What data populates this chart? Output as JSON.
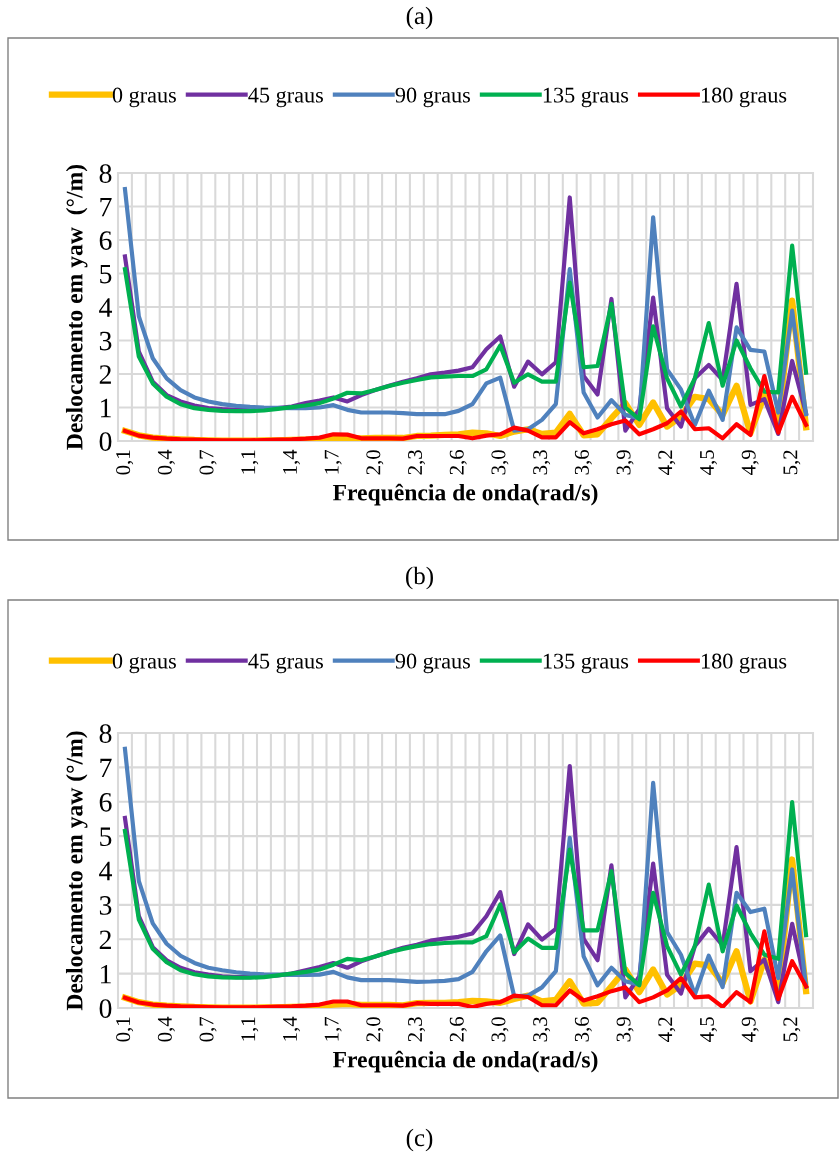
{
  "chart_data": [
    {
      "type": "line",
      "title": "(a)",
      "annotations": [
        "(b)"
      ],
      "xlabel": "Frequência de onda(rad/s)",
      "ylabel": "Deslocamento em yaw  (°/m)",
      "categories": [
        "0,1",
        null,
        null,
        "0,4",
        null,
        null,
        "0,7",
        null,
        null,
        "1,1",
        null,
        null,
        "1,4",
        null,
        null,
        "1,7",
        null,
        null,
        "2,0",
        null,
        null,
        "2,3",
        null,
        null,
        "2,6",
        null,
        null,
        "3,0",
        null,
        null,
        "3,3",
        null,
        null,
        "3,6",
        null,
        null,
        "3,9",
        null,
        null,
        "4,2",
        null,
        null,
        "4,5",
        null,
        null,
        "4,9",
        null,
        null,
        "5,2",
        null
      ],
      "ylim": [
        0,
        8
      ],
      "yticks": [
        0,
        1,
        2,
        3,
        4,
        5,
        6,
        7,
        8
      ],
      "grid": true,
      "legend": "top",
      "marker": "none",
      "line_style": "solid",
      "series": [
        {
          "name": "0 graus",
          "color": "#ffc000",
          "values": [
            0.3,
            0.17,
            0.1,
            0.07,
            0.05,
            0.03,
            0.02,
            0.01,
            0.01,
            0.01,
            0.02,
            0.02,
            0.03,
            0.04,
            0.05,
            0.08,
            0.1,
            0.08,
            0.09,
            0.09,
            0.09,
            0.15,
            0.16,
            0.18,
            0.2,
            0.25,
            0.23,
            0.15,
            0.28,
            0.35,
            0.21,
            0.25,
            0.81,
            0.17,
            0.2,
            0.68,
            1.13,
            0.48,
            1.15,
            0.43,
            0.73,
            1.32,
            1.25,
            0.78,
            1.65,
            0.23,
            1.37,
            0.58,
            4.19,
            0.41
          ]
        },
        {
          "name": "45 graus",
          "color": "#7030a0",
          "values": [
            5.51,
            2.67,
            1.77,
            1.37,
            1.18,
            1.06,
            0.98,
            0.95,
            0.93,
            0.93,
            0.95,
            0.98,
            1.03,
            1.13,
            1.21,
            1.3,
            1.18,
            1.37,
            1.52,
            1.65,
            1.77,
            1.87,
            1.99,
            2.04,
            2.1,
            2.2,
            2.74,
            3.12,
            1.62,
            2.37,
            1.99,
            2.35,
            7.27,
            1.94,
            1.39,
            4.24,
            0.31,
            0.95,
            4.28,
            0.98,
            0.43,
            1.87,
            2.27,
            1.82,
            4.69,
            1.08,
            1.25,
            0.21,
            2.39,
            0.83
          ]
        },
        {
          "name": "90 graus",
          "color": "#4f81bd",
          "values": [
            7.52,
            3.72,
            2.47,
            1.87,
            1.52,
            1.3,
            1.18,
            1.1,
            1.05,
            1.02,
            1.0,
            0.99,
            0.98,
            0.98,
            1.0,
            1.07,
            0.93,
            0.85,
            0.85,
            0.85,
            0.83,
            0.8,
            0.8,
            0.8,
            0.9,
            1.1,
            1.72,
            1.89,
            0.31,
            0.35,
            0.63,
            1.1,
            5.13,
            1.45,
            0.7,
            1.22,
            0.78,
            0.68,
            6.68,
            2.14,
            1.54,
            0.48,
            1.5,
            0.63,
            3.39,
            2.72,
            2.67,
            0.85,
            3.89,
            0.8
          ]
        },
        {
          "name": "135 graus",
          "color": "#00b050",
          "values": [
            5.13,
            2.52,
            1.72,
            1.32,
            1.1,
            0.98,
            0.93,
            0.9,
            0.89,
            0.89,
            0.91,
            0.96,
            1.01,
            1.06,
            1.13,
            1.27,
            1.44,
            1.42,
            1.52,
            1.64,
            1.74,
            1.82,
            1.9,
            1.92,
            1.94,
            1.94,
            2.14,
            2.85,
            1.74,
            1.99,
            1.77,
            1.77,
            4.73,
            2.2,
            2.24,
            4.09,
            1.0,
            0.65,
            3.42,
            1.87,
            1.03,
            1.87,
            3.52,
            1.65,
            3.0,
            2.17,
            1.47,
            1.45,
            5.83,
            2.04
          ]
        },
        {
          "name": "180 graus",
          "color": "#ff0000",
          "values": [
            0.3,
            0.16,
            0.1,
            0.07,
            0.05,
            0.04,
            0.03,
            0.02,
            0.02,
            0.02,
            0.03,
            0.04,
            0.05,
            0.07,
            0.1,
            0.2,
            0.19,
            0.08,
            0.08,
            0.08,
            0.07,
            0.15,
            0.15,
            0.15,
            0.15,
            0.08,
            0.16,
            0.2,
            0.4,
            0.31,
            0.11,
            0.11,
            0.56,
            0.23,
            0.35,
            0.5,
            0.61,
            0.2,
            0.35,
            0.53,
            0.88,
            0.35,
            0.38,
            0.08,
            0.5,
            0.18,
            1.94,
            0.25,
            1.32,
            0.48
          ]
        }
      ]
    },
    {
      "type": "line",
      "annotations": [
        "(c)"
      ],
      "xlabel": "Frequência de onda(rad/s)",
      "ylabel": "Deslocamento em yaw (°/m)",
      "categories": [
        "0,1",
        null,
        null,
        "0,4",
        null,
        null,
        "0,7",
        null,
        null,
        "1,1",
        null,
        null,
        "1,4",
        null,
        null,
        "1,7",
        null,
        null,
        "2,0",
        null,
        null,
        "2,3",
        null,
        null,
        "2,6",
        null,
        null,
        "3,0",
        null,
        null,
        "3,3",
        null,
        null,
        "3,6",
        null,
        null,
        "3,9",
        null,
        null,
        "4,2",
        null,
        null,
        "4,5",
        null,
        null,
        "4,9",
        null,
        null,
        "5,2",
        null
      ],
      "ylim": [
        0,
        8
      ],
      "yticks": [
        0,
        1,
        2,
        3,
        4,
        5,
        6,
        7,
        8
      ],
      "grid": true,
      "legend": "top",
      "marker": "none",
      "line_style": "solid",
      "series": [
        {
          "name": "0 graus",
          "color": "#ffc000",
          "values": [
            0.3,
            0.17,
            0.1,
            0.07,
            0.05,
            0.03,
            0.02,
            0.01,
            0.01,
            0.01,
            0.02,
            0.02,
            0.03,
            0.04,
            0.05,
            0.1,
            0.12,
            0.09,
            0.09,
            0.09,
            0.08,
            0.14,
            0.15,
            0.15,
            0.17,
            0.21,
            0.19,
            0.15,
            0.26,
            0.36,
            0.19,
            0.24,
            0.78,
            0.13,
            0.15,
            0.63,
            1.12,
            0.46,
            1.12,
            0.39,
            0.68,
            1.29,
            1.24,
            0.73,
            1.65,
            0.19,
            1.41,
            0.44,
            4.32,
            0.49
          ]
        },
        {
          "name": "45 graus",
          "color": "#7030a0",
          "values": [
            5.53,
            2.67,
            1.77,
            1.39,
            1.17,
            1.04,
            0.97,
            0.92,
            0.9,
            0.9,
            0.92,
            0.95,
            1.0,
            1.1,
            1.19,
            1.31,
            1.17,
            1.36,
            1.5,
            1.63,
            1.75,
            1.84,
            1.96,
            2.02,
            2.07,
            2.17,
            2.67,
            3.37,
            1.57,
            2.43,
            1.99,
            2.3,
            7.04,
            2.01,
            1.39,
            4.15,
            0.31,
            0.92,
            4.2,
            0.97,
            0.42,
            1.8,
            2.31,
            1.82,
            4.68,
            1.07,
            1.41,
            0.17,
            2.45,
            0.63
          ]
        },
        {
          "name": "90 graus",
          "color": "#4f81bd",
          "values": [
            7.54,
            3.69,
            2.46,
            1.87,
            1.52,
            1.31,
            1.17,
            1.1,
            1.04,
            1.0,
            0.98,
            0.97,
            0.96,
            0.96,
            0.97,
            1.05,
            0.89,
            0.81,
            0.81,
            0.81,
            0.79,
            0.76,
            0.77,
            0.79,
            0.84,
            1.05,
            1.65,
            2.11,
            0.34,
            0.36,
            0.6,
            1.07,
            4.95,
            1.5,
            0.66,
            1.17,
            0.78,
            0.68,
            6.55,
            2.21,
            1.55,
            0.39,
            1.52,
            0.61,
            3.35,
            2.79,
            2.89,
            0.87,
            4.03,
            0.63
          ]
        },
        {
          "name": "135 graus",
          "color": "#00b050",
          "values": [
            5.15,
            2.57,
            1.72,
            1.33,
            1.1,
            0.98,
            0.92,
            0.89,
            0.88,
            0.88,
            0.9,
            0.95,
            1.0,
            1.05,
            1.12,
            1.26,
            1.43,
            1.39,
            1.5,
            1.62,
            1.72,
            1.8,
            1.86,
            1.89,
            1.91,
            1.91,
            2.09,
            3.01,
            1.62,
            2.02,
            1.75,
            1.75,
            4.61,
            2.26,
            2.26,
            3.98,
            1.02,
            0.66,
            3.35,
            1.8,
            0.97,
            1.8,
            3.59,
            1.65,
            2.98,
            2.18,
            1.55,
            1.43,
            5.99,
            2.12
          ]
        },
        {
          "name": "180 graus",
          "color": "#ff0000",
          "values": [
            0.3,
            0.16,
            0.1,
            0.07,
            0.05,
            0.04,
            0.03,
            0.02,
            0.02,
            0.02,
            0.03,
            0.04,
            0.05,
            0.07,
            0.1,
            0.19,
            0.19,
            0.08,
            0.08,
            0.08,
            0.07,
            0.14,
            0.12,
            0.12,
            0.12,
            0.03,
            0.12,
            0.17,
            0.36,
            0.32,
            0.08,
            0.08,
            0.51,
            0.22,
            0.34,
            0.49,
            0.6,
            0.17,
            0.31,
            0.51,
            0.87,
            0.31,
            0.34,
            0.03,
            0.46,
            0.17,
            2.23,
            0.26,
            1.36,
            0.63
          ]
        }
      ]
    }
  ]
}
